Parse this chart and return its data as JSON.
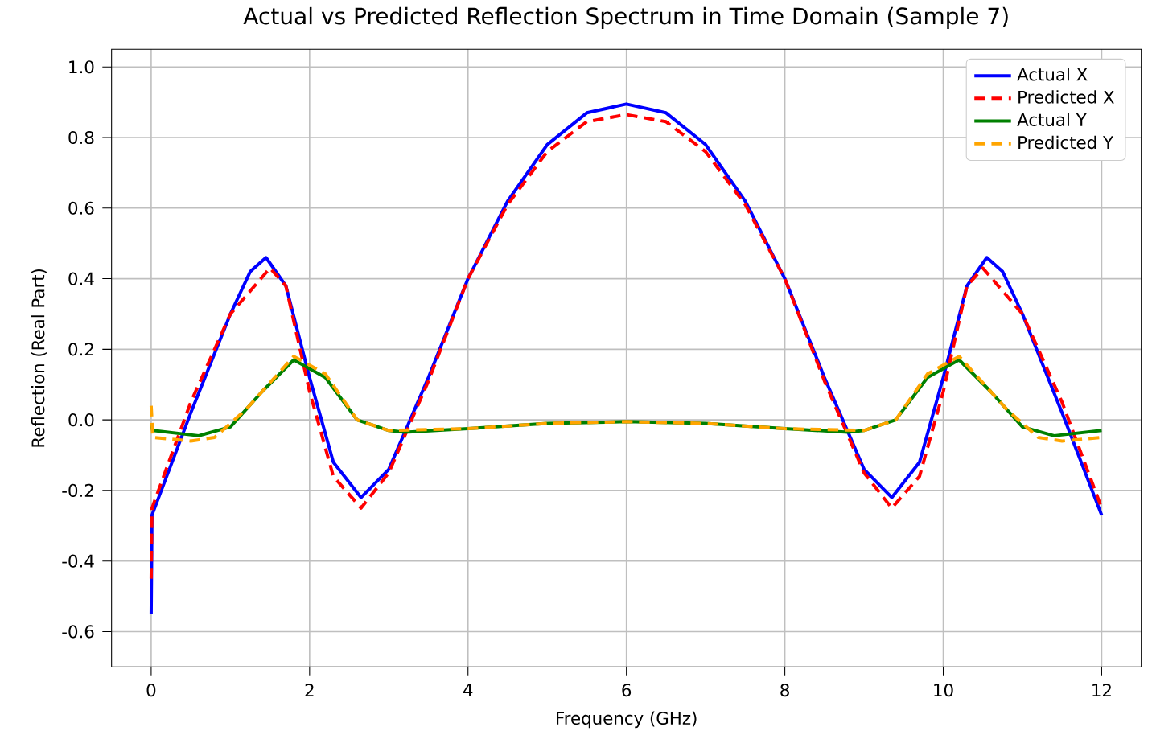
{
  "chart_data": {
    "type": "line",
    "title": "Actual vs Predicted Reflection Spectrum in Time Domain (Sample 7)",
    "xlabel": "Frequency (GHz)",
    "ylabel": "Reflection (Real Part)",
    "xlim": [
      -0.5,
      12.5
    ],
    "ylim": [
      -0.7,
      1.05
    ],
    "xticks": [
      0,
      2,
      4,
      6,
      8,
      10,
      12
    ],
    "yticks": [
      {
        "value": -0.6,
        "label": "-0.6"
      },
      {
        "value": -0.4,
        "label": "-0.4"
      },
      {
        "value": -0.2,
        "label": "-0.2"
      },
      {
        "value": 0,
        "label": "0.0"
      },
      {
        "value": 0.2,
        "label": "0.2"
      },
      {
        "value": 0.4,
        "label": "0.4"
      },
      {
        "value": 0.6,
        "label": "0.6"
      },
      {
        "value": 0.8,
        "label": "0.8"
      },
      {
        "value": 1.0,
        "label": "1.0"
      }
    ],
    "grid": true,
    "legend": "top right",
    "marker": "none",
    "series": [
      {
        "name": "Actual X",
        "color": "#0000ff",
        "line_style": "solid",
        "x": [
          0,
          0.01,
          0.5,
          1.0,
          1.25,
          1.45,
          1.7,
          2.0,
          2.3,
          2.65,
          3.0,
          3.5,
          4.0,
          4.5,
          5.0,
          5.5,
          6.0,
          6.5,
          7.0,
          7.5,
          8.0,
          8.5,
          9.0,
          9.35,
          9.7,
          10.0,
          10.3,
          10.55,
          10.75,
          11.0,
          11.5,
          12.0
        ],
        "values": [
          -0.55,
          -0.27,
          0.02,
          0.3,
          0.42,
          0.46,
          0.38,
          0.12,
          -0.12,
          -0.22,
          -0.14,
          0.12,
          0.4,
          0.62,
          0.78,
          0.87,
          0.895,
          0.87,
          0.78,
          0.62,
          0.4,
          0.12,
          -0.14,
          -0.22,
          -0.12,
          0.12,
          0.38,
          0.46,
          0.42,
          0.3,
          0.02,
          -0.27
        ]
      },
      {
        "name": "Predicted X",
        "color": "#ff0000",
        "line_style": "dashed",
        "x": [
          0,
          0.01,
          0.5,
          1.0,
          1.5,
          1.7,
          2.0,
          2.3,
          2.65,
          3.0,
          3.5,
          4.0,
          4.5,
          5.0,
          5.5,
          6.0,
          6.5,
          7.0,
          7.5,
          8.0,
          8.5,
          9.0,
          9.35,
          9.7,
          10.0,
          10.3,
          10.5,
          11.0,
          11.5,
          12.0
        ],
        "values": [
          -0.45,
          -0.25,
          0.05,
          0.3,
          0.43,
          0.38,
          0.08,
          -0.16,
          -0.25,
          -0.15,
          0.11,
          0.4,
          0.61,
          0.76,
          0.845,
          0.865,
          0.845,
          0.76,
          0.61,
          0.4,
          0.11,
          -0.15,
          -0.25,
          -0.16,
          0.08,
          0.38,
          0.43,
          0.3,
          0.05,
          -0.25
        ]
      },
      {
        "name": "Actual Y",
        "color": "#008000",
        "line_style": "solid",
        "x": [
          0,
          0.02,
          0.6,
          1.0,
          1.4,
          1.8,
          2.2,
          2.6,
          3.0,
          3.2,
          4.0,
          5.0,
          6.0,
          7.0,
          8.0,
          8.8,
          9.0,
          9.4,
          9.8,
          10.2,
          10.6,
          11.0,
          11.4,
          12.0
        ],
        "values": [
          -0.01,
          -0.03,
          -0.045,
          -0.02,
          0.08,
          0.17,
          0.12,
          0.0,
          -0.03,
          -0.035,
          -0.025,
          -0.01,
          -0.005,
          -0.01,
          -0.025,
          -0.035,
          -0.03,
          0.0,
          0.12,
          0.17,
          0.08,
          -0.02,
          -0.045,
          -0.03
        ]
      },
      {
        "name": "Predicted Y",
        "color": "#ffa500",
        "line_style": "dashed",
        "x": [
          0,
          0.02,
          0.5,
          0.8,
          1.2,
          1.8,
          2.2,
          2.6,
          3.0,
          4.0,
          5.0,
          6.0,
          7.0,
          8.0,
          9.0,
          9.4,
          9.8,
          10.2,
          10.8,
          11.2,
          11.5,
          12.0
        ],
        "values": [
          0.04,
          -0.05,
          -0.06,
          -0.05,
          0.03,
          0.18,
          0.13,
          0.0,
          -0.03,
          -0.025,
          -0.01,
          -0.005,
          -0.01,
          -0.025,
          -0.03,
          0.0,
          0.13,
          0.18,
          0.03,
          -0.05,
          -0.06,
          -0.05
        ]
      }
    ]
  }
}
